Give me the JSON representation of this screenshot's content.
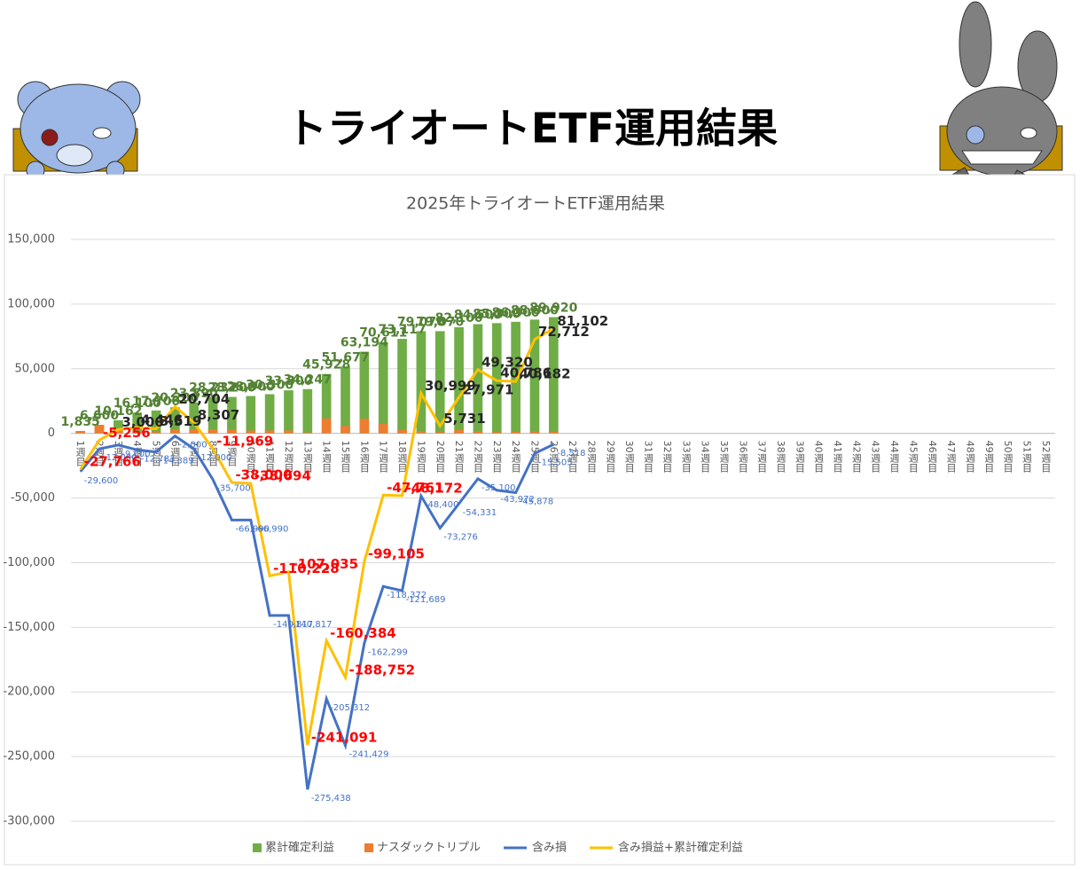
{
  "page_title": "トライオートETF運用結果",
  "chart_data": {
    "type": "combo",
    "title": "2025年トライオートETF運用結果",
    "categories": [
      "1週目",
      "2週目",
      "3週目",
      "4週目",
      "5週目",
      "6週目",
      "7週目",
      "8週目",
      "9週目",
      "10週目",
      "11週目",
      "12週目",
      "13週目",
      "14週目",
      "15週目",
      "16週目",
      "17週目",
      "18週目",
      "19週目",
      "20週目",
      "21週目",
      "22週目",
      "23週目",
      "24週目",
      "25週目",
      "26週目",
      "27週目",
      "28週目",
      "29週目",
      "30週目",
      "31週目",
      "32週目",
      "33週目",
      "34週目",
      "35週目",
      "36週目",
      "37週目",
      "38週目",
      "39週目",
      "40週目",
      "41週目",
      "42週目",
      "43週目",
      "44週目",
      "45週目",
      "46週目",
      "47週目",
      "48週目",
      "49週目",
      "50週目",
      "51週目",
      "52週目"
    ],
    "ylim": [
      -300000,
      150000
    ],
    "yticks": [
      {
        "value": -300000,
        "label": "-300,000"
      },
      {
        "value": -250000,
        "label": "-250,000"
      },
      {
        "value": -200000,
        "label": "-200,000"
      },
      {
        "value": -150000,
        "label": "-150,000"
      },
      {
        "value": -100000,
        "label": "-100,000"
      },
      {
        "value": -50000,
        "label": "-50,000"
      },
      0,
      {
        "value": 50000,
        "label": "50,000"
      },
      {
        "value": 100000,
        "label": "100,000"
      },
      {
        "value": 150000,
        "label": "150,000"
      }
    ],
    "grid": true,
    "legend": "bottom",
    "series": [
      {
        "name": "累計確定利益",
        "kind": "bar",
        "color": "#70ad47",
        "values": [
          1835,
          6600,
          10162,
          16100,
          17700,
          20200,
          23890,
          28232,
          28200,
          28900,
          30300,
          33300,
          34247,
          45928,
          51677,
          63194,
          70611,
          73117,
          79070,
          79070,
          82100,
          84500,
          85300,
          86300,
          88000,
          89920,
          null,
          null,
          null,
          null,
          null,
          null,
          null,
          null,
          null,
          null,
          null,
          null,
          null,
          null,
          null,
          null,
          null,
          null,
          null,
          null,
          null,
          null,
          null,
          null,
          null,
          null
        ],
        "value_labels": [
          "1,835",
          "6,600",
          "10,162",
          "16,100",
          "17,700",
          "20,200",
          "23,890",
          "28,232",
          "28,200",
          "28,900",
          "30,300",
          "33,300",
          "34,247",
          "45,928",
          "51,677",
          "63,194",
          "70,611",
          "73,117",
          "79,070",
          "79,070",
          "82,100",
          "84,500",
          "85,300",
          "86,300",
          "88,000",
          "89,920",
          null,
          null,
          null,
          null,
          null,
          null,
          null,
          null,
          null,
          null,
          null,
          null,
          null,
          null,
          null,
          null,
          null,
          null,
          null,
          null,
          null,
          null,
          null,
          null,
          null,
          null
        ]
      },
      {
        "name": "ナスダックトリプル",
        "kind": "bar",
        "color": "#ed7d31",
        "values": [
          1500,
          6600,
          2700,
          1000,
          1000,
          3000,
          3000,
          3000,
          3000,
          2200,
          2200,
          2200,
          700,
          11581,
          5749,
          11313,
          7217,
          2496,
          1500,
          1000,
          2500,
          1500,
          1000,
          1200,
          1700,
          1343,
          null,
          null,
          null,
          null,
          null,
          null,
          null,
          null,
          null,
          null,
          null,
          null,
          null,
          null,
          null,
          null,
          null,
          null,
          null,
          null,
          null,
          null,
          null,
          null,
          null,
          null
        ]
      },
      {
        "name": "含み損",
        "kind": "line",
        "color": "#4472c4",
        "values": [
          -29600,
          -12000,
          -9000,
          -12783,
          -14389,
          -2000,
          -12000,
          -35700,
          -66990,
          -66990,
          -140817,
          -140817,
          -275438,
          -205312,
          -241429,
          -162299,
          -118372,
          -121689,
          -48400,
          -73276,
          -54331,
          -35100,
          -43972,
          -45878,
          -15505,
          -8518,
          null,
          null,
          null,
          null,
          null,
          null,
          null,
          null,
          null,
          null,
          null,
          null,
          null,
          null,
          null,
          null,
          null,
          null,
          null,
          null,
          null,
          null,
          null,
          null,
          null,
          null
        ],
        "value_labels": [
          "-29,600",
          "-12,000",
          "-9,000",
          "-12,783",
          "-14,389",
          "-2,000",
          "-12,000",
          "-35,700",
          "-66,990",
          "-66,990",
          "-140,817",
          "-140,817",
          "-275,438",
          "-205,312",
          "-241,429",
          "-162,299",
          "-118,372",
          "-121,689",
          "-48,400",
          "-73,276",
          "-54,331",
          "-35,100",
          "-43,972",
          "-45,878",
          "-15,505",
          "-8,518",
          null,
          null,
          null,
          null,
          null,
          null,
          null,
          null,
          null,
          null,
          null,
          null,
          null,
          null,
          null,
          null,
          null,
          null,
          null,
          null,
          null,
          null,
          null,
          null,
          null,
          null
        ]
      },
      {
        "name": "含み損益+累計確定利益",
        "kind": "line",
        "color": "#ffc000",
        "values": [
          -27766,
          -5256,
          3000,
          4446,
          3519,
          20704,
          8307,
          -11969,
          -38000,
          -38694,
          -110228,
          -107035,
          -241091,
          -160384,
          -188752,
          -99105,
          -47761,
          -48172,
          30999,
          5731,
          27971,
          49320,
          40786,
          40182,
          72712,
          81102,
          null,
          null,
          null,
          null,
          null,
          null,
          null,
          null,
          null,
          null,
          null,
          null,
          null,
          null,
          null,
          null,
          null,
          null,
          null,
          null,
          null,
          null,
          null,
          null,
          null,
          null
        ],
        "value_labels": [
          "-27,766",
          "-5,256",
          "3,000",
          "4,446",
          "3,519",
          "20,704",
          "8,307",
          "-11,969",
          "-38,000",
          "-38,694",
          "-110,228",
          "-107,035",
          "-241,091",
          "-160,384",
          "-188,752",
          "-99,105",
          "-47,761",
          "-48,172",
          "30,999",
          "5,731",
          "27,971",
          "49,320",
          "40,786",
          "40,182",
          "72,712",
          "81,102",
          null,
          null,
          null,
          null,
          null,
          null,
          null,
          null,
          null,
          null,
          null,
          null,
          null,
          null,
          null,
          null,
          null,
          null,
          null,
          null,
          null,
          null,
          null,
          null,
          null,
          null
        ]
      }
    ]
  }
}
